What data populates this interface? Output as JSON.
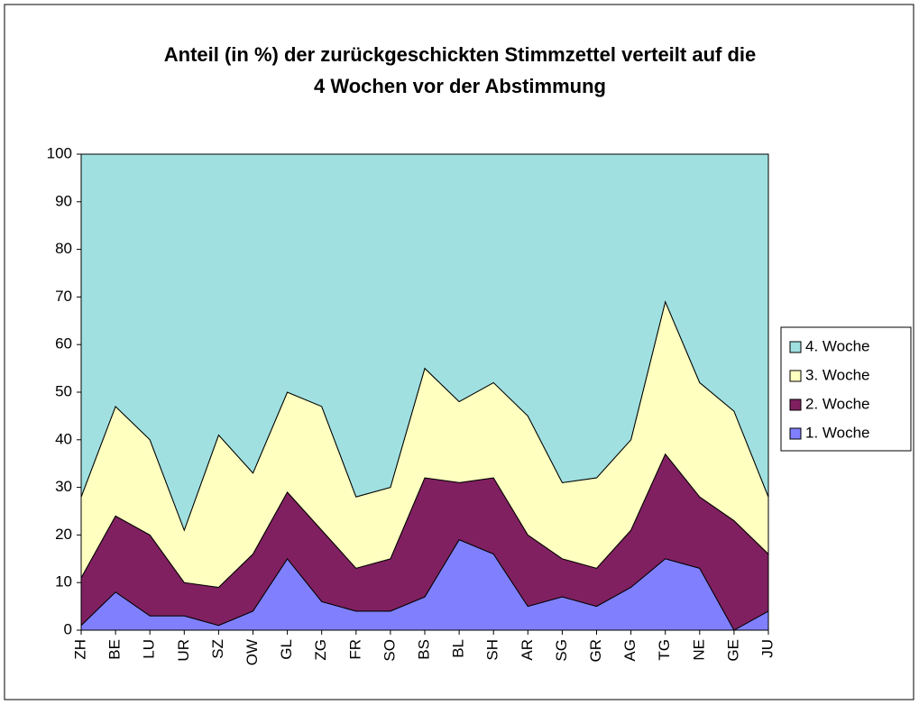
{
  "chart_data": {
    "type": "stacked_area",
    "title": [
      "Anteil (in %) der zurückgeschickten Stimmzettel verteilt auf die",
      "4 Wochen vor der Abstimmung"
    ],
    "categories": [
      "ZH",
      "BE",
      "LU",
      "UR",
      "SZ",
      "OW",
      "GL",
      "ZG",
      "FR",
      "SO",
      "BS",
      "BL",
      "SH",
      "AR",
      "SG",
      "GR",
      "AG",
      "TG",
      "NE",
      "GE",
      "JU"
    ],
    "series": [
      {
        "name": "1. Woche",
        "color": "#8080ff",
        "values": [
          1,
          8,
          3,
          3,
          1,
          4,
          15,
          6,
          4,
          4,
          7,
          19,
          16,
          5,
          7,
          5,
          9,
          15,
          13,
          0,
          4
        ]
      },
      {
        "name": "2. Woche",
        "color": "#802060",
        "values": [
          10,
          16,
          17,
          7,
          8,
          12,
          14,
          15,
          9,
          11,
          25,
          12,
          16,
          15,
          8,
          8,
          12,
          22,
          15,
          23,
          12
        ]
      },
      {
        "name": "3. Woche",
        "color": "#ffffc0",
        "values": [
          17,
          23,
          20,
          11,
          32,
          17,
          21,
          26,
          15,
          15,
          23,
          17,
          20,
          25,
          16,
          19,
          19,
          32,
          24,
          23,
          12
        ]
      },
      {
        "name": "4. Woche",
        "color": "#a0e0e0",
        "values": [
          72,
          53,
          60,
          79,
          59,
          67,
          50,
          53,
          72,
          70,
          45,
          52,
          48,
          55,
          69,
          68,
          60,
          31,
          48,
          54,
          72
        ]
      }
    ],
    "ylim": [
      0,
      100
    ],
    "yticks": [
      0,
      10,
      20,
      30,
      40,
      50,
      60,
      70,
      80,
      90,
      100
    ],
    "legend": "right"
  }
}
